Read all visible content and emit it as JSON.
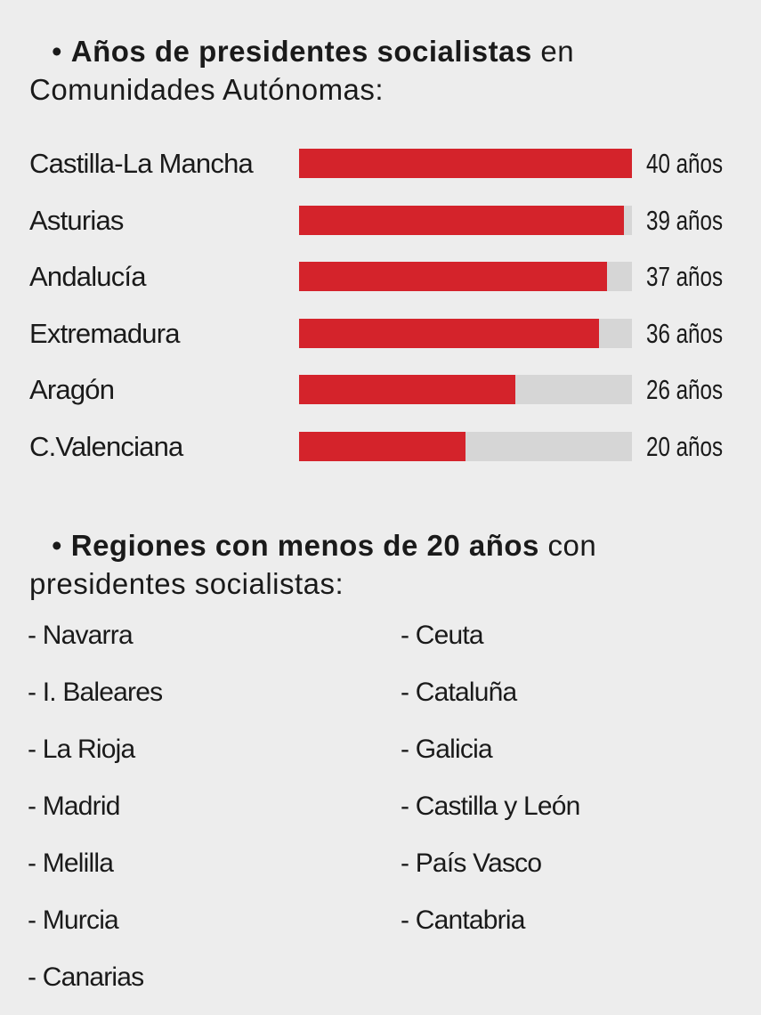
{
  "heading1": {
    "bullet": "•",
    "bold": "Años de presidentes socialistas",
    "rest": " en",
    "line2": "Comunidades Autónomas:"
  },
  "heading2": {
    "bullet": "•",
    "bold": "Regiones con menos de 20 años",
    "rest": " con",
    "line2": "presidentes socialistas:"
  },
  "chart_data": {
    "type": "bar",
    "orientation": "horizontal",
    "categories": [
      "Castilla-La Mancha",
      "Asturias",
      "Andalucía",
      "Extremadura",
      "Aragón",
      "C.Valenciana"
    ],
    "values": [
      40,
      39,
      37,
      36,
      26,
      20
    ],
    "value_labels": [
      "40 años",
      "39 años",
      "37 años",
      "36 años",
      "26 años",
      "20 años"
    ],
    "xlim": [
      0,
      40
    ],
    "colors": {
      "bar": "#d4232b",
      "track": "#d6d6d6",
      "background": "#ededed"
    }
  },
  "list": {
    "left": [
      "- Navarra",
      "- I. Baleares",
      "- La Rioja",
      "- Madrid",
      "- Melilla",
      "- Murcia",
      "- Canarias"
    ],
    "right": [
      "- Ceuta",
      "- Cataluña",
      "- Galicia",
      "- Castilla y León",
      "- País Vasco",
      "- Cantabria"
    ]
  }
}
